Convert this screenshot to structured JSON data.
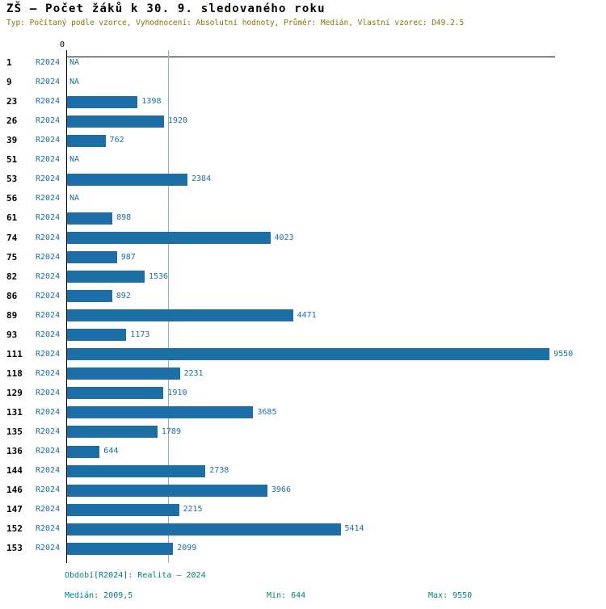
{
  "header": {
    "title": "ZŠ – Počet žáků k 30. 9. sledovaného roku",
    "subtitle": "Typ: Počítaný podle vzorce, Vyhodnocení: Absolutní hodnoty, Průměr: Medián, Vlastní vzorec: D49.2.5"
  },
  "chart_data": {
    "type": "bar",
    "orientation": "horizontal",
    "title": "ZŠ – Počet žáků k 30. 9. sledovaného roku",
    "categories": [
      "1",
      "9",
      "23",
      "26",
      "39",
      "51",
      "53",
      "56",
      "61",
      "74",
      "75",
      "82",
      "86",
      "89",
      "93",
      "111",
      "118",
      "129",
      "131",
      "135",
      "136",
      "144",
      "146",
      "147",
      "152",
      "153"
    ],
    "series": [
      {
        "name": "R2024",
        "values": [
          null,
          null,
          1398,
          1920,
          762,
          null,
          2384,
          null,
          898,
          4023,
          987,
          1536,
          892,
          4471,
          1173,
          9550,
          2231,
          1910,
          3685,
          1789,
          644,
          2738,
          3966,
          2215,
          5414,
          2099
        ]
      }
    ],
    "na_label": "NA",
    "x_tick_labels": [
      "0"
    ],
    "xlim": [
      0,
      9660
    ],
    "median_line_x": 2009.5,
    "value_labels_shown": true,
    "grid": "single vertical median gridline",
    "legend_position": "none"
  },
  "footer": {
    "period": "Období[R2024]: Realita – 2024",
    "median": "Medián: 2009,5",
    "min": "Min: 644",
    "max": "Max: 9550"
  },
  "colors": {
    "bar": "#1c6fa6",
    "accent-text": "#1c6fa6",
    "subtitle": "#7f7b00",
    "footer": "#008080",
    "axis": "#000000",
    "gridline": "#8fb2c9"
  }
}
